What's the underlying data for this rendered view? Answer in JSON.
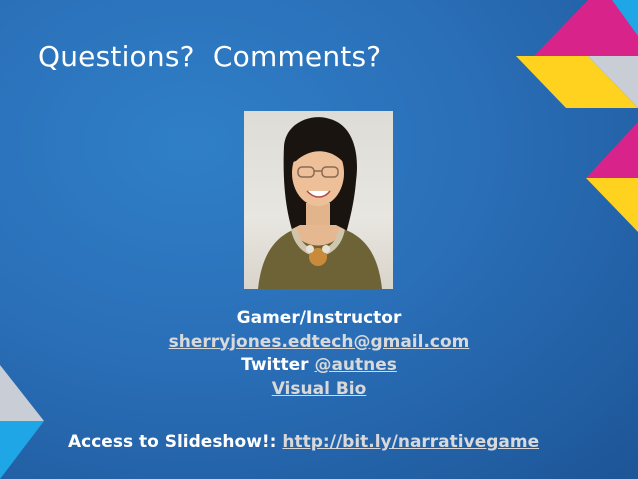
{
  "slide": {
    "title": "Questions?  Comments?",
    "role": "Gamer/Instructor",
    "email": "sherryjones.edtech@gmail.com",
    "twitter_prefix": "Twitter",
    "twitter_handle": "@autnes",
    "bio_link": "Visual Bio",
    "access_label": "Access to Slideshow!:",
    "access_link": "http://bit.ly/narrativegame"
  },
  "colors": {
    "background": "#2a6fb8",
    "magenta": "#d8248a",
    "yellow": "#ffd21f",
    "cyan": "#1fa6e6",
    "gray": "#c9ced6",
    "link": "#d9d9d9"
  }
}
